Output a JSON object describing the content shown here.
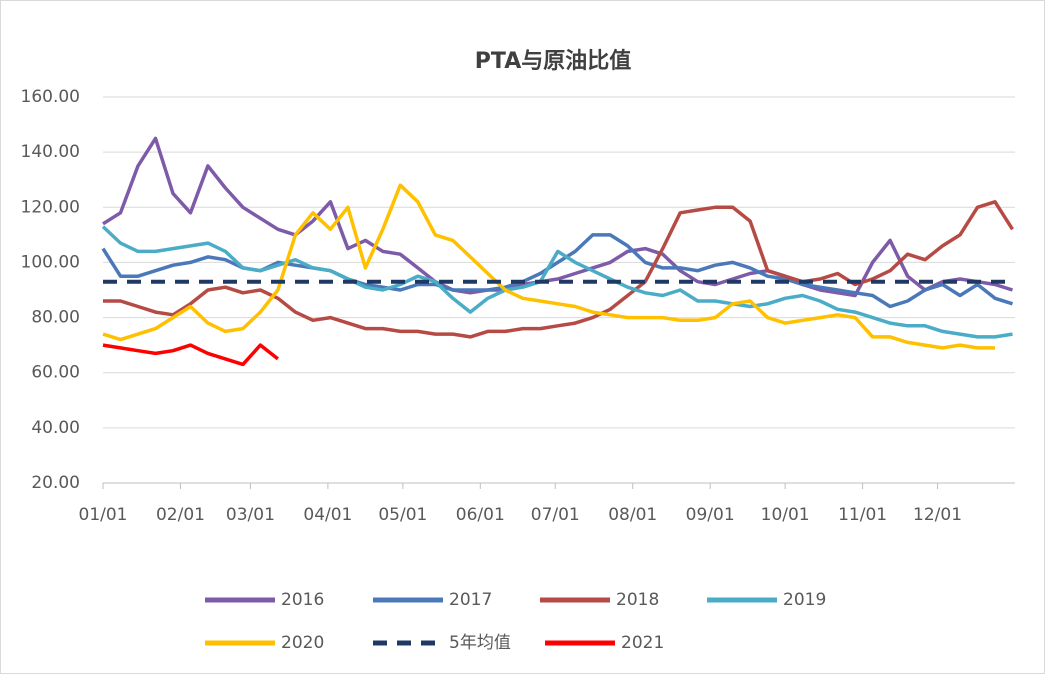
{
  "chart_data": {
    "type": "line",
    "title": "PTA与原油比值",
    "x": [
      1,
      8,
      15,
      22,
      29,
      36,
      43,
      50,
      57,
      64,
      71,
      78,
      85,
      92,
      99,
      106,
      113,
      120,
      127,
      134,
      141,
      148,
      155,
      162,
      169,
      176,
      183,
      190,
      197,
      204,
      211,
      218,
      225,
      232,
      239,
      246,
      253,
      260,
      267,
      274,
      281,
      288,
      295,
      302,
      309,
      316,
      323,
      330,
      337,
      344,
      351,
      358,
      365
    ],
    "xlim": [
      1,
      366
    ],
    "xticks": [
      {
        "value": 1,
        "label": "01/01"
      },
      {
        "value": 32,
        "label": "02/01"
      },
      {
        "value": 60,
        "label": "03/01"
      },
      {
        "value": 91,
        "label": "04/01"
      },
      {
        "value": 121,
        "label": "05/01"
      },
      {
        "value": 152,
        "label": "06/01"
      },
      {
        "value": 182,
        "label": "07/01"
      },
      {
        "value": 213,
        "label": "08/01"
      },
      {
        "value": 244,
        "label": "09/01"
      },
      {
        "value": 274,
        "label": "10/01"
      },
      {
        "value": 305,
        "label": "11/01"
      },
      {
        "value": 335,
        "label": "12/01"
      }
    ],
    "ylim": [
      20,
      160
    ],
    "yticks": [
      {
        "value": 20,
        "label": "20.00"
      },
      {
        "value": 40,
        "label": "40.00"
      },
      {
        "value": 60,
        "label": "60.00"
      },
      {
        "value": 80,
        "label": "80.00"
      },
      {
        "value": 100,
        "label": "100.00"
      },
      {
        "value": 120,
        "label": "120.00"
      },
      {
        "value": 140,
        "label": "140.00"
      },
      {
        "value": 160,
        "label": "160.00"
      }
    ],
    "grid": true,
    "series": [
      {
        "name": "2016",
        "color": "#7e5ba8",
        "values": [
          114,
          118,
          135,
          145,
          125,
          118,
          135,
          127,
          120,
          116,
          112,
          110,
          115,
          122,
          105,
          108,
          104,
          103,
          98,
          93,
          90,
          89,
          90,
          90,
          92,
          93,
          94,
          96,
          98,
          100,
          104,
          105,
          103,
          97,
          93,
          92,
          94,
          96,
          97,
          95,
          92,
          90,
          89,
          88,
          100,
          108,
          95,
          90,
          93,
          94,
          93,
          92,
          90
        ]
      },
      {
        "name": "2017",
        "color": "#4a78b8",
        "values": [
          105,
          95,
          95,
          97,
          99,
          100,
          102,
          101,
          98,
          97,
          100,
          99,
          98,
          97,
          94,
          92,
          91,
          90,
          92,
          92,
          90,
          90,
          90,
          91,
          93,
          96,
          100,
          104,
          110,
          110,
          106,
          100,
          98,
          98,
          97,
          99,
          100,
          98,
          95,
          94,
          92,
          91,
          90,
          89,
          88,
          84,
          86,
          90,
          92,
          88,
          92,
          87,
          85
        ]
      },
      {
        "name": "2018",
        "color": "#b64a45",
        "values": [
          86,
          86,
          84,
          82,
          81,
          85,
          90,
          91,
          89,
          90,
          87,
          82,
          79,
          80,
          78,
          76,
          76,
          75,
          75,
          74,
          74,
          73,
          75,
          75,
          76,
          76,
          77,
          78,
          80,
          83,
          88,
          93,
          105,
          118,
          119,
          120,
          120,
          115,
          97,
          95,
          93,
          94,
          96,
          92,
          94,
          97,
          103,
          101,
          106,
          110,
          120,
          122,
          112
        ]
      },
      {
        "name": "2019",
        "color": "#4aacc6",
        "values": [
          113,
          107,
          104,
          104,
          105,
          106,
          107,
          104,
          98,
          97,
          99,
          101,
          98,
          97,
          94,
          91,
          90,
          92,
          95,
          93,
          87,
          82,
          87,
          90,
          91,
          93,
          104,
          100,
          97,
          94,
          91,
          89,
          88,
          90,
          86,
          86,
          85,
          84,
          85,
          87,
          88,
          86,
          83,
          82,
          80,
          78,
          77,
          77,
          75,
          74,
          73,
          73,
          74
        ]
      },
      {
        "name": "2020",
        "color": "#ffc000",
        "values": [
          74,
          72,
          74,
          76,
          80,
          84,
          78,
          75,
          76,
          82,
          90,
          110,
          118,
          112,
          120,
          98,
          112,
          128,
          122,
          110,
          108,
          102,
          96,
          90,
          87,
          86,
          85,
          84,
          82,
          81,
          80,
          80,
          80,
          79,
          79,
          80,
          85,
          86,
          80,
          78,
          79,
          80,
          81,
          80,
          73,
          73,
          71,
          70,
          69,
          70,
          69,
          69,
          null
        ]
      },
      {
        "name": "5年均值",
        "color": "#1f3864",
        "dash": true,
        "values": [
          93,
          93,
          93,
          93,
          93,
          93,
          93,
          93,
          93,
          93,
          93,
          93,
          93,
          93,
          93,
          93,
          93,
          93,
          93,
          93,
          93,
          93,
          93,
          93,
          93,
          93,
          93,
          93,
          93,
          93,
          93,
          93,
          93,
          93,
          93,
          93,
          93,
          93,
          93,
          93,
          93,
          93,
          93,
          93,
          93,
          93,
          93,
          93,
          93,
          93,
          93,
          93,
          93
        ]
      },
      {
        "name": "2021",
        "color": "#ff0000",
        "values": [
          70,
          69,
          68,
          67,
          68,
          70,
          67,
          65,
          63,
          70,
          65,
          null,
          null,
          null,
          null,
          null,
          null,
          null,
          null,
          null,
          null,
          null,
          null,
          null,
          null,
          null,
          null,
          null,
          null,
          null,
          null,
          null,
          null,
          null,
          null,
          null,
          null,
          null,
          null,
          null,
          null,
          null,
          null,
          null,
          null,
          null,
          null,
          null,
          null,
          null,
          null,
          null,
          null
        ]
      }
    ]
  }
}
